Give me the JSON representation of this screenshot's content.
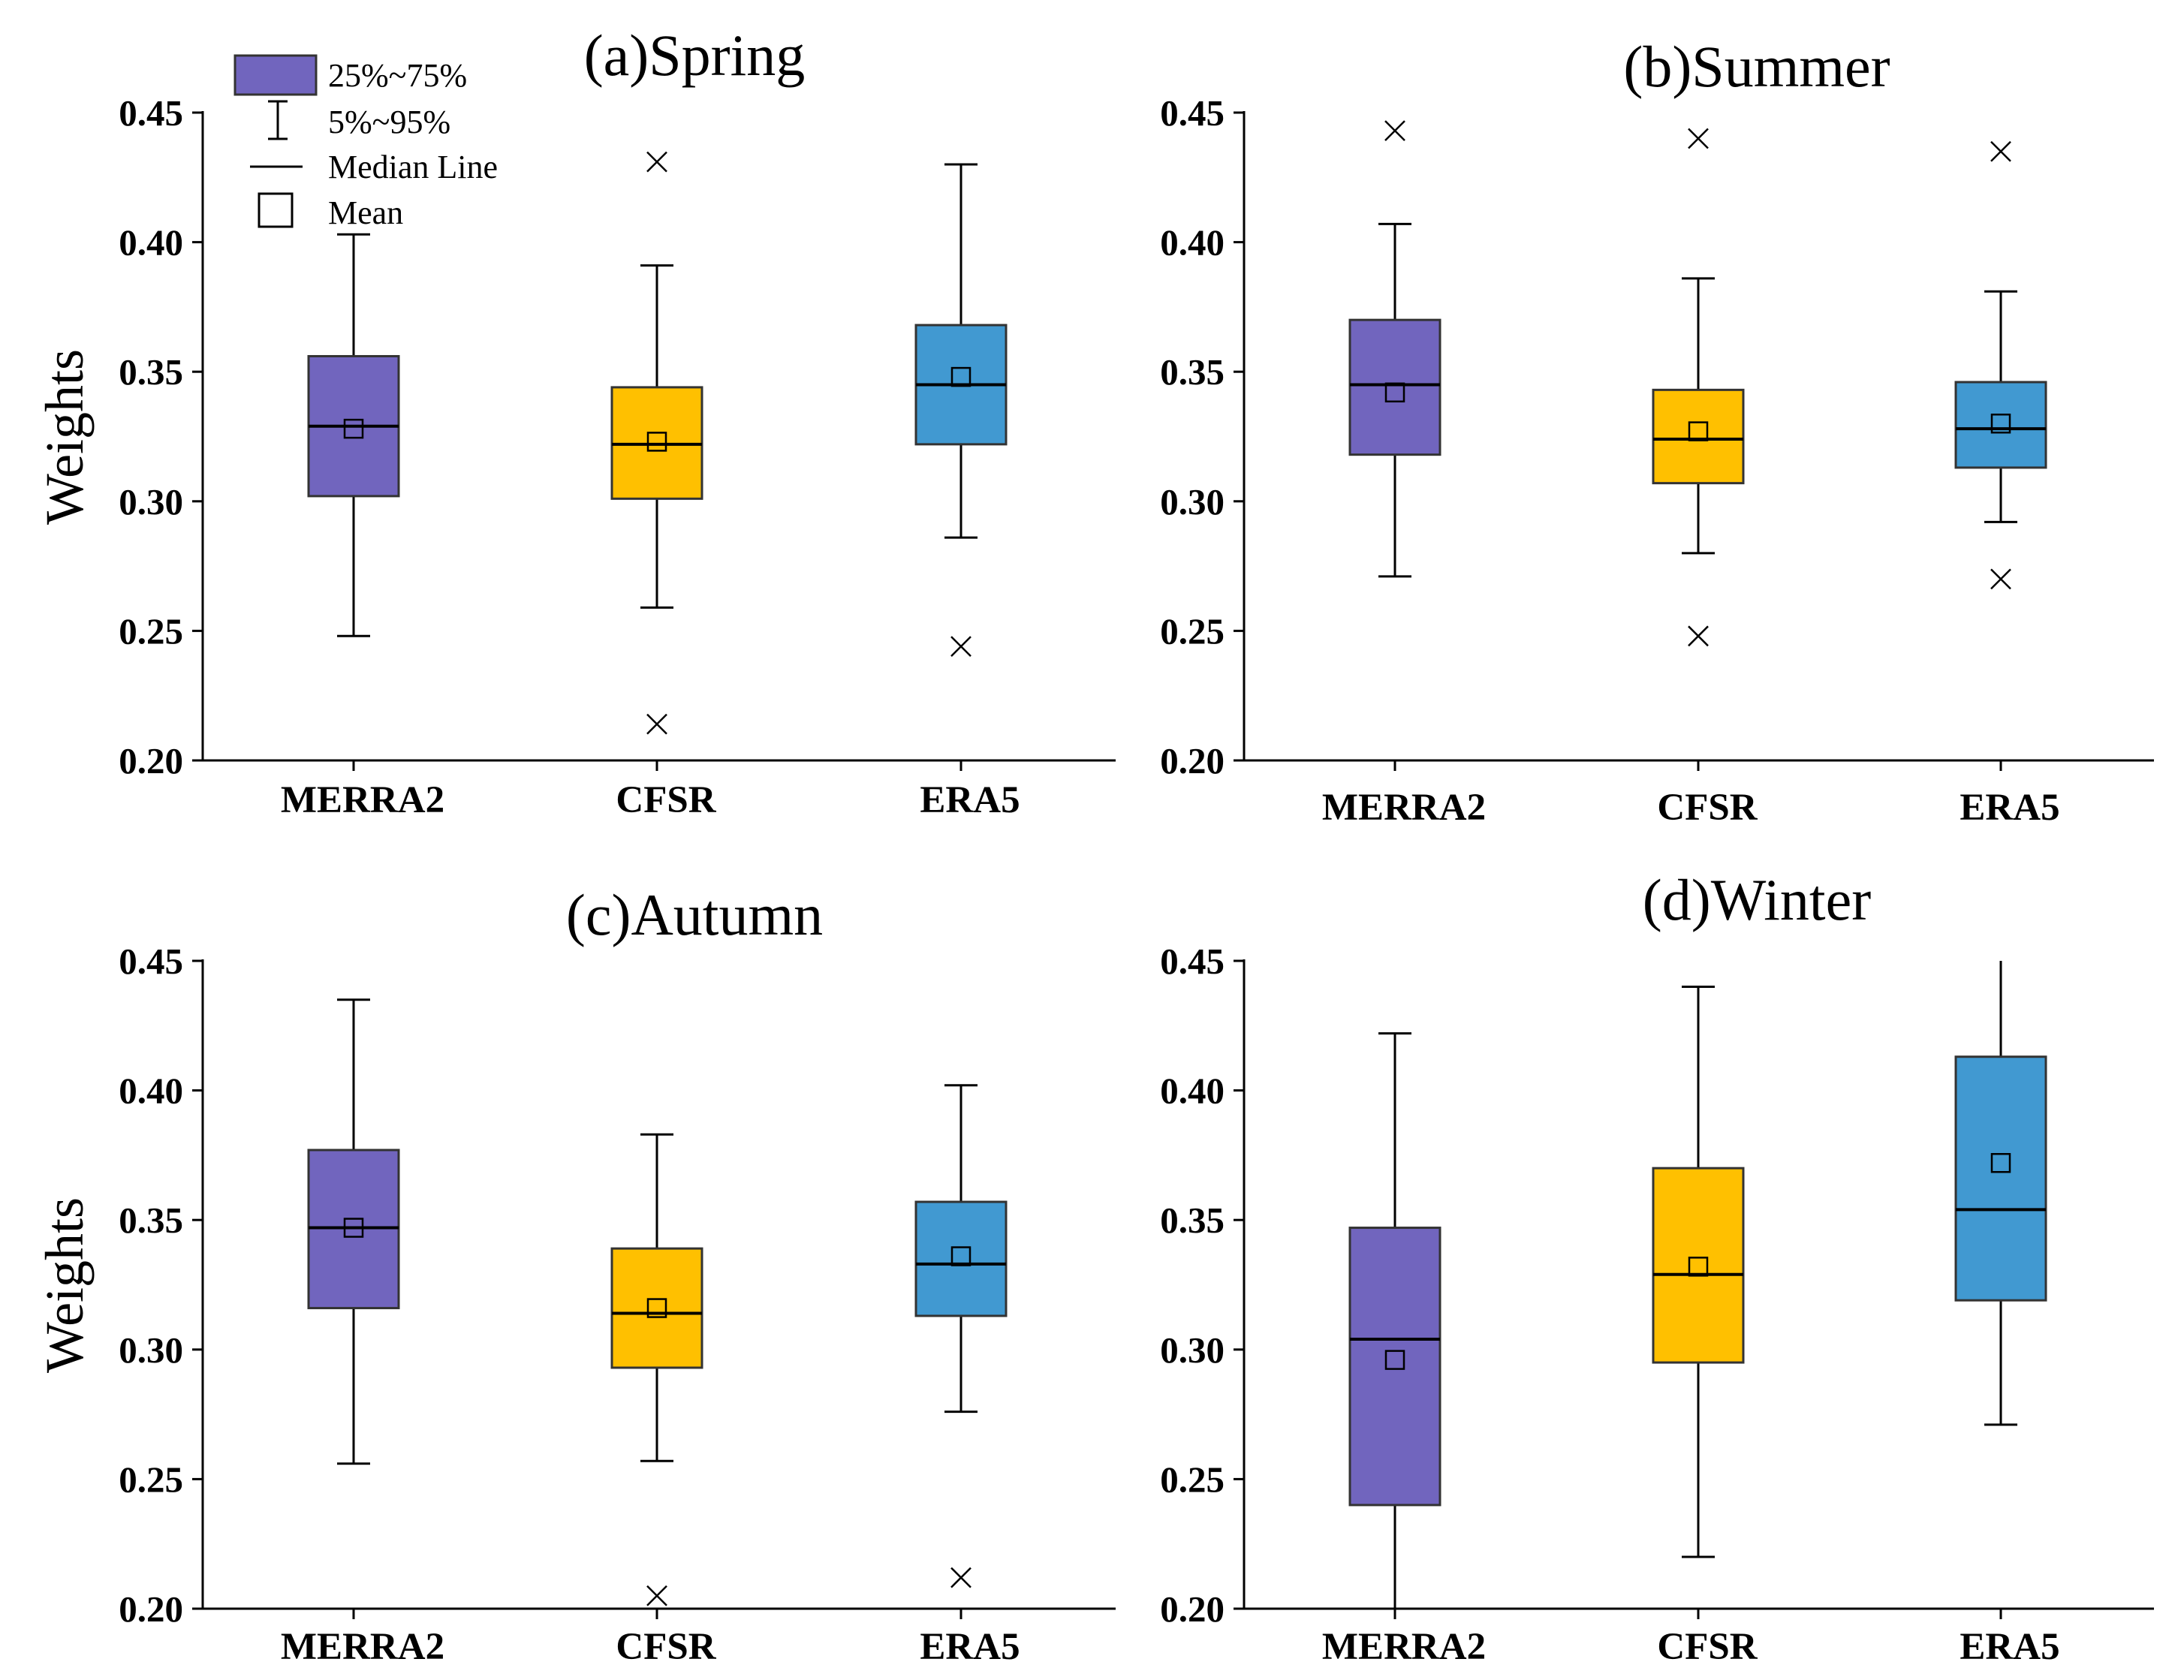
{
  "legend": {
    "items": [
      {
        "label": "25%~75%",
        "icon": "box-swatch-icon",
        "color": "#7165BE"
      },
      {
        "label": "5%~95%",
        "icon": "whisker-icon"
      },
      {
        "label": "Median Line",
        "icon": "median-line-icon"
      },
      {
        "label": "Mean",
        "icon": "mean-square-icon"
      }
    ]
  },
  "colors": {
    "MERRA2": "#7165BE",
    "CFSR": "#FFC000",
    "ERA5": "#4199D1",
    "outline": "#333333"
  },
  "chart_data": [
    {
      "type": "box",
      "title": "(a)Spring",
      "ylabel": "Weights",
      "xlabel": "",
      "ylim": [
        0.2,
        0.45
      ],
      "yticks": [
        "0.20",
        "0.25",
        "0.30",
        "0.35",
        "0.40",
        "0.45"
      ],
      "categories": [
        "MERRA2",
        "CFSR",
        "ERA5"
      ],
      "boxes": [
        {
          "category": "MERRA2",
          "whisker_low": 0.248,
          "q1": 0.302,
          "median": 0.329,
          "q3": 0.356,
          "whisker_high": 0.403,
          "mean": 0.328,
          "outliers": []
        },
        {
          "category": "CFSR",
          "whisker_low": 0.259,
          "q1": 0.301,
          "median": 0.322,
          "q3": 0.344,
          "whisker_high": 0.391,
          "mean": 0.323,
          "outliers": [
            0.431,
            0.214
          ]
        },
        {
          "category": "ERA5",
          "whisker_low": 0.286,
          "q1": 0.322,
          "median": 0.345,
          "q3": 0.368,
          "whisker_high": 0.43,
          "mean": 0.348,
          "outliers": [
            0.244
          ]
        }
      ]
    },
    {
      "type": "box",
      "title": "(b)Summer",
      "ylabel": "",
      "xlabel": "",
      "ylim": [
        0.2,
        0.45
      ],
      "yticks": [
        "0.20",
        "0.25",
        "0.30",
        "0.35",
        "0.40",
        "0.45"
      ],
      "categories": [
        "MERRA2",
        "CFSR",
        "ERA5"
      ],
      "boxes": [
        {
          "category": "MERRA2",
          "whisker_low": 0.271,
          "q1": 0.318,
          "median": 0.345,
          "q3": 0.37,
          "whisker_high": 0.407,
          "mean": 0.342,
          "outliers": [
            0.443
          ]
        },
        {
          "category": "CFSR",
          "whisker_low": 0.28,
          "q1": 0.307,
          "median": 0.324,
          "q3": 0.343,
          "whisker_high": 0.386,
          "mean": 0.327,
          "outliers": [
            0.44,
            0.248
          ]
        },
        {
          "category": "ERA5",
          "whisker_low": 0.292,
          "q1": 0.313,
          "median": 0.328,
          "q3": 0.346,
          "whisker_high": 0.381,
          "mean": 0.33,
          "outliers": [
            0.435,
            0.27
          ]
        }
      ]
    },
    {
      "type": "box",
      "title": "(c)Autumn",
      "ylabel": "Weights",
      "xlabel": "",
      "ylim": [
        0.2,
        0.45
      ],
      "yticks": [
        "0.20",
        "0.25",
        "0.30",
        "0.35",
        "0.40",
        "0.45"
      ],
      "categories": [
        "MERRA2",
        "CFSR",
        "ERA5"
      ],
      "boxes": [
        {
          "category": "MERRA2",
          "whisker_low": 0.256,
          "q1": 0.316,
          "median": 0.347,
          "q3": 0.377,
          "whisker_high": 0.435,
          "mean": 0.347,
          "outliers": []
        },
        {
          "category": "CFSR",
          "whisker_low": 0.257,
          "q1": 0.293,
          "median": 0.314,
          "q3": 0.339,
          "whisker_high": 0.383,
          "mean": 0.316,
          "outliers": [
            0.205
          ]
        },
        {
          "category": "ERA5",
          "whisker_low": 0.276,
          "q1": 0.313,
          "median": 0.333,
          "q3": 0.357,
          "whisker_high": 0.402,
          "mean": 0.336,
          "outliers": [
            0.212
          ]
        }
      ]
    },
    {
      "type": "box",
      "title": "(d)Winter",
      "ylabel": "",
      "xlabel": "",
      "ylim": [
        0.2,
        0.45
      ],
      "yticks": [
        "0.20",
        "0.25",
        "0.30",
        "0.35",
        "0.40",
        "0.45"
      ],
      "categories": [
        "MERRA2",
        "CFSR",
        "ERA5"
      ],
      "boxes": [
        {
          "category": "MERRA2",
          "whisker_low": 0.2,
          "q1": 0.24,
          "median": 0.304,
          "q3": 0.347,
          "whisker_high": 0.422,
          "mean": 0.296,
          "outliers": []
        },
        {
          "category": "CFSR",
          "whisker_low": 0.22,
          "q1": 0.295,
          "median": 0.329,
          "q3": 0.37,
          "whisker_high": 0.44,
          "mean": 0.332,
          "outliers": []
        },
        {
          "category": "ERA5",
          "whisker_low": 0.271,
          "q1": 0.319,
          "median": 0.354,
          "q3": 0.413,
          "whisker_high": 0.45,
          "mean": 0.372,
          "outliers": []
        }
      ]
    }
  ]
}
